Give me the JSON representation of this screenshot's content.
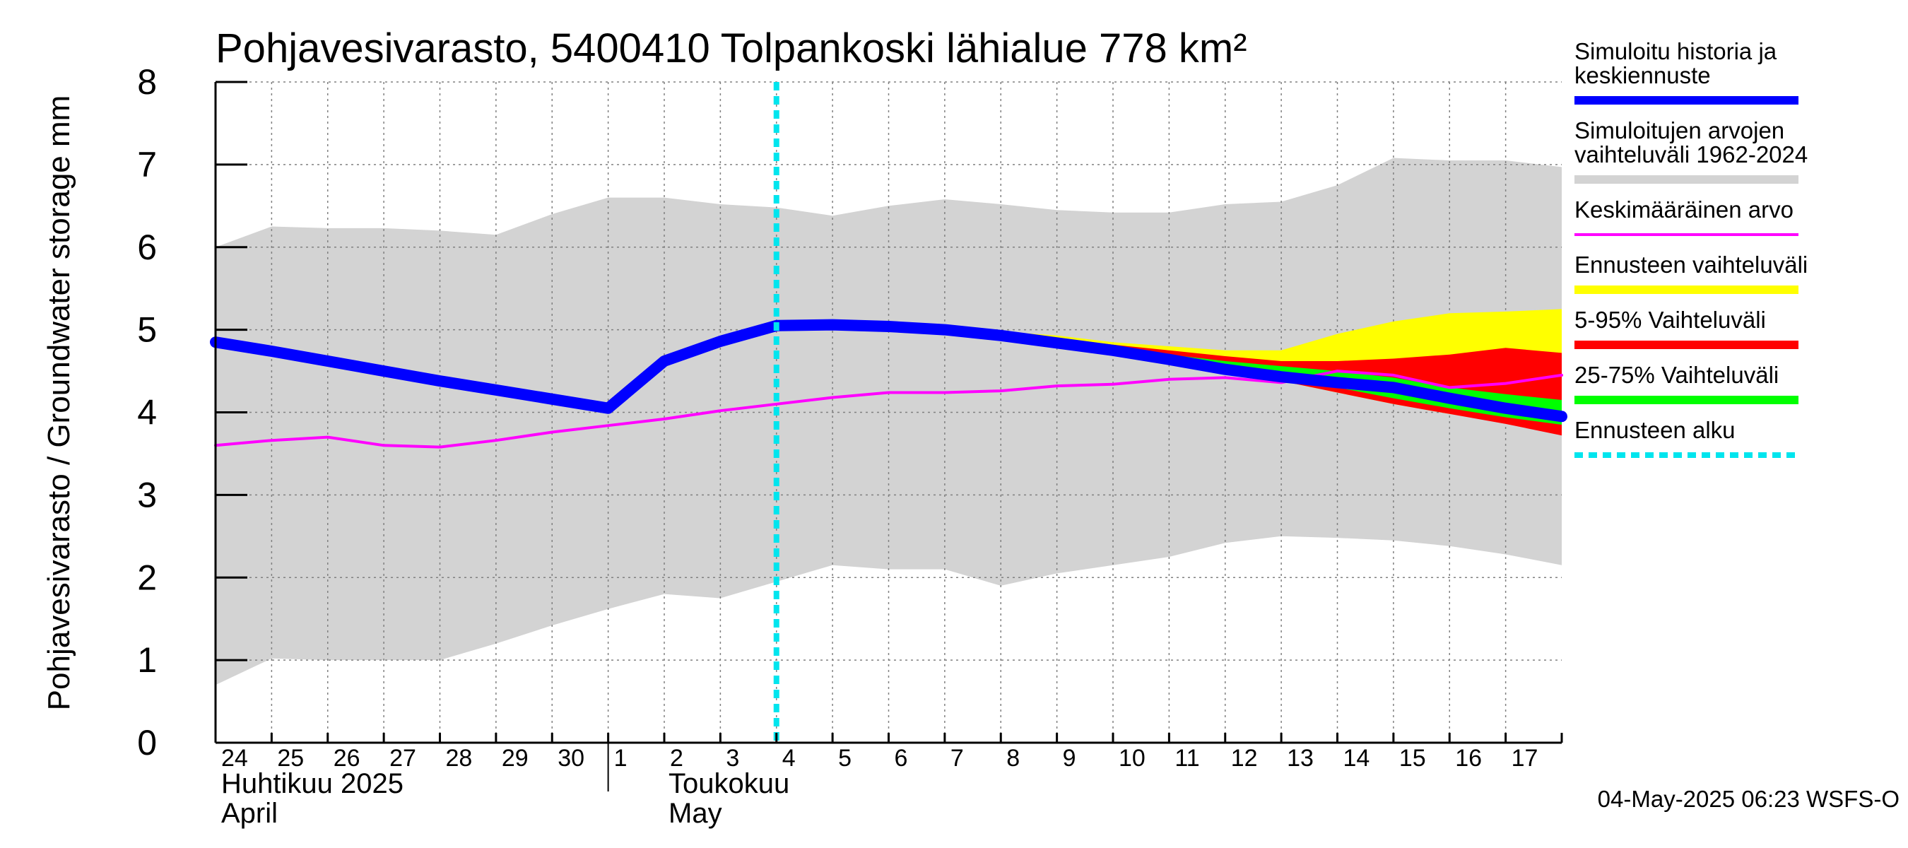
{
  "chart_data": {
    "type": "area",
    "title": "Pohjavesivarasto, 5400410 Tolpankoski lähialue 778 km²",
    "ylabel": "Pohjavesivarasto / Groundwater storage   mm",
    "ylim": [
      0,
      8
    ],
    "yticks": [
      "0",
      "1",
      "2",
      "3",
      "4",
      "5",
      "6",
      "7",
      "8"
    ],
    "x_labels": [
      "24",
      "25",
      "26",
      "27",
      "28",
      "29",
      "30",
      "1",
      "2",
      "3",
      "4",
      "5",
      "6",
      "7",
      "8",
      "9",
      "10",
      "11",
      "12",
      "13",
      "14",
      "15",
      "16",
      "17"
    ],
    "month_labels": {
      "april_fi": "Huhtikuu  2025",
      "april_en": "April",
      "may_fi": "Toukokuu",
      "may_en": "May"
    },
    "day_index_note": "x = day index, 0 = Apr 24, 7 = May 1, 24 = May 18",
    "x_range": [
      0,
      24
    ],
    "forecast_start_x": 10.0,
    "history_range": {
      "name": "Simuloitujen arvojen vaihteluväli 1962-2024",
      "color": "#d3d3d3",
      "x": [
        0,
        1,
        2,
        3,
        4,
        5,
        6,
        7,
        8,
        9,
        10,
        11,
        12,
        13,
        14,
        15,
        16,
        17,
        18,
        19,
        20,
        21,
        22,
        23,
        24
      ],
      "upper": [
        6.0,
        6.25,
        6.23,
        6.23,
        6.2,
        6.15,
        6.4,
        6.6,
        6.6,
        6.52,
        6.48,
        6.38,
        6.5,
        6.58,
        6.52,
        6.45,
        6.42,
        6.42,
        6.52,
        6.55,
        6.75,
        7.08,
        7.05,
        7.05,
        6.97
      ],
      "lower": [
        0.7,
        1.02,
        1.0,
        1.0,
        1.0,
        1.2,
        1.42,
        1.62,
        1.8,
        1.75,
        1.95,
        2.15,
        2.1,
        2.1,
        1.9,
        2.05,
        2.15,
        2.25,
        2.42,
        2.5,
        2.48,
        2.45,
        2.38,
        2.28,
        2.15
      ]
    },
    "forecast_range": {
      "name": "Ennusteen vaihteluväli",
      "color": "#ffff00",
      "x": [
        10,
        11,
        12,
        13,
        14,
        15,
        16,
        17,
        18,
        19,
        20,
        21,
        22,
        23,
        24
      ],
      "upper": [
        5.05,
        5.06,
        5.05,
        5.02,
        4.98,
        4.93,
        4.85,
        4.8,
        4.75,
        4.75,
        4.95,
        5.1,
        5.2,
        5.22,
        5.25
      ],
      "lower": [
        5.05,
        5.06,
        5.05,
        4.99,
        4.9,
        4.8,
        4.7,
        4.6,
        4.5,
        4.38,
        4.24,
        4.1,
        3.98,
        3.88,
        3.78
      ]
    },
    "p5_95": {
      "name": "5-95% Vaihteluväli",
      "color": "#ff0000",
      "x": [
        10,
        11,
        12,
        13,
        14,
        15,
        16,
        17,
        18,
        19,
        20,
        21,
        22,
        23,
        24
      ],
      "upper": [
        5.05,
        5.06,
        5.05,
        5.01,
        4.96,
        4.9,
        4.82,
        4.75,
        4.68,
        4.62,
        4.62,
        4.65,
        4.7,
        4.78,
        4.72
      ],
      "lower": [
        5.05,
        5.06,
        5.05,
        4.99,
        4.91,
        4.81,
        4.7,
        4.6,
        4.5,
        4.38,
        4.24,
        4.1,
        3.98,
        3.86,
        3.72
      ]
    },
    "p25_75": {
      "name": "25-75% Vaihteluväli",
      "color": "#00ff00",
      "x": [
        10,
        11,
        12,
        13,
        14,
        15,
        16,
        17,
        18,
        19,
        20,
        21,
        22,
        23,
        24
      ],
      "upper": [
        5.05,
        5.06,
        5.05,
        5.0,
        4.94,
        4.87,
        4.78,
        4.7,
        4.62,
        4.56,
        4.5,
        4.42,
        4.3,
        4.22,
        4.15
      ],
      "lower": [
        5.05,
        5.06,
        5.05,
        4.99,
        4.92,
        4.84,
        4.74,
        4.64,
        4.53,
        4.42,
        4.3,
        4.17,
        4.05,
        3.94,
        3.85
      ]
    },
    "mean_forecast": {
      "name": "Simuloitu historia ja keskiennuste",
      "color": "#0000ff",
      "x": [
        0,
        1,
        2,
        3,
        4,
        5,
        6,
        7,
        8,
        9,
        10,
        11,
        12,
        13,
        14,
        15,
        16,
        17,
        18,
        19,
        20,
        21,
        22,
        23,
        24
      ],
      "y": [
        4.85,
        4.74,
        4.62,
        4.5,
        4.38,
        4.27,
        4.16,
        4.05,
        4.62,
        4.86,
        5.05,
        5.06,
        5.04,
        5.0,
        4.93,
        4.84,
        4.75,
        4.64,
        4.52,
        4.43,
        4.36,
        4.3,
        4.17,
        4.05,
        3.95
      ]
    },
    "long_term_mean": {
      "name": "Keskimääräinen arvo",
      "color": "#ff00ff",
      "x": [
        0,
        1,
        2,
        3,
        4,
        5,
        6,
        7,
        8,
        9,
        10,
        11,
        12,
        13,
        14,
        15,
        16,
        17,
        18,
        19,
        20,
        21,
        22,
        23,
        24
      ],
      "y": [
        3.6,
        3.66,
        3.7,
        3.6,
        3.58,
        3.66,
        3.76,
        3.84,
        3.92,
        4.02,
        4.1,
        4.18,
        4.24,
        4.24,
        4.26,
        4.32,
        4.34,
        4.4,
        4.42,
        4.36,
        4.5,
        4.45,
        4.3,
        4.35,
        4.45
      ]
    },
    "legend": [
      {
        "label_lines": [
          "Simuloitu historia ja",
          "keskiennuste"
        ],
        "color": "#0000ff",
        "style": "thick"
      },
      {
        "label_lines": [
          "Simuloitujen arvojen",
          "vaihteluväli 1962-2024"
        ],
        "color": "#d3d3d3",
        "style": "thick"
      },
      {
        "label_lines": [
          "Keskimääräinen arvo"
        ],
        "color": "#ff00ff",
        "style": "thin"
      },
      {
        "label_lines": [
          "Ennusteen vaihteluväli"
        ],
        "color": "#ffff00",
        "style": "thick"
      },
      {
        "label_lines": [
          "5-95% Vaihteluväli"
        ],
        "color": "#ff0000",
        "style": "thick"
      },
      {
        "label_lines": [
          "25-75% Vaihteluväli"
        ],
        "color": "#00ff00",
        "style": "thick"
      },
      {
        "label_lines": [
          "Ennusteen alku"
        ],
        "color": "#00e5ee",
        "style": "dotted"
      }
    ],
    "legend_placement": "right",
    "grid": true,
    "timestamp": "04-May-2025 06:23 WSFS-O"
  }
}
